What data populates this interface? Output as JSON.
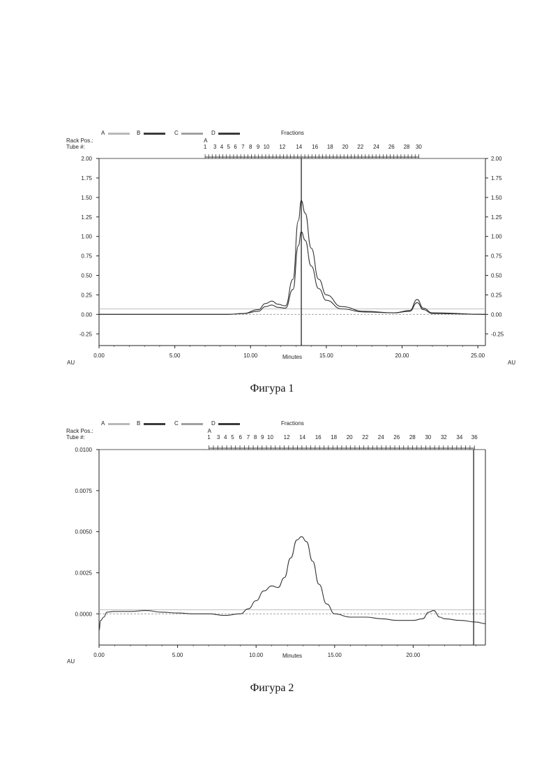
{
  "figures": [
    {
      "caption": "Фигура 1",
      "header": {
        "legend": [
          {
            "label": "A",
            "color": "#b8b8b8"
          },
          {
            "label": "B",
            "color": "#3a3a3a"
          },
          {
            "label": "C",
            "color": "#a0a0a0"
          },
          {
            "label": "D",
            "color": "#3a3a3a"
          }
        ],
        "fractions_label": "Fractions",
        "rack_label": "Rack Pos.:",
        "tube_label": "Tube #:",
        "rack_letter": "A"
      },
      "fraction_labels": [
        {
          "label": "1",
          "x": 7.0
        },
        {
          "label": "3",
          "x": 7.65
        },
        {
          "label": "4",
          "x": 8.1
        },
        {
          "label": "5",
          "x": 8.55
        },
        {
          "label": "6",
          "x": 9.0
        },
        {
          "label": "7",
          "x": 9.5
        },
        {
          "label": "8",
          "x": 10.0
        },
        {
          "label": "9",
          "x": 10.5
        },
        {
          "label": "10",
          "x": 11.05
        },
        {
          "label": "12",
          "x": 12.1
        },
        {
          "label": "14",
          "x": 13.2
        },
        {
          "label": "16",
          "x": 14.25
        },
        {
          "label": "18",
          "x": 15.25
        },
        {
          "label": "20",
          "x": 16.25
        },
        {
          "label": "22",
          "x": 17.25
        },
        {
          "label": "24",
          "x": 18.3
        },
        {
          "label": "26",
          "x": 19.3
        },
        {
          "label": "28",
          "x": 20.3
        },
        {
          "label": "30",
          "x": 21.1
        }
      ],
      "axis_unit_left": "AU",
      "axis_unit_right": "AU",
      "x_axis_label": "Minutes",
      "chart_data": {
        "type": "line",
        "xlabel": "Minutes",
        "ylabel": "AU",
        "xlim": [
          0,
          25.5
        ],
        "ylim": [
          -0.4,
          2.0
        ],
        "x_ticks": [
          "0.00",
          "5.00",
          "10.00",
          "15.00",
          "20.00",
          "25.00"
        ],
        "y_ticks": [
          "2.00",
          "1.75",
          "1.50",
          "1.25",
          "1.00",
          "0.75",
          "0.50",
          "0.25",
          "0.00",
          "-0.25"
        ],
        "marker_x": 13.35,
        "baselines": [
          0.07,
          0.0
        ],
        "series": [
          {
            "values": [
              [
                0,
                0.0
              ],
              [
                8.5,
                0.0
              ],
              [
                9.5,
                0.01
              ],
              [
                10.5,
                0.06
              ],
              [
                11.0,
                0.14
              ],
              [
                11.4,
                0.17
              ],
              [
                11.8,
                0.13
              ],
              [
                12.3,
                0.11
              ],
              [
                12.8,
                0.45
              ],
              [
                13.15,
                1.2
              ],
              [
                13.35,
                1.46
              ],
              [
                13.6,
                1.3
              ],
              [
                14.0,
                0.85
              ],
              [
                14.5,
                0.45
              ],
              [
                15.0,
                0.25
              ],
              [
                16.0,
                0.1
              ],
              [
                17.5,
                0.04
              ],
              [
                19.5,
                0.02
              ],
              [
                20.5,
                0.05
              ],
              [
                21.0,
                0.19
              ],
              [
                21.4,
                0.08
              ],
              [
                22.0,
                0.02
              ],
              [
                25.5,
                0.0
              ]
            ]
          },
          {
            "values": [
              [
                0,
                0.0
              ],
              [
                8.5,
                0.0
              ],
              [
                9.5,
                0.01
              ],
              [
                10.5,
                0.04
              ],
              [
                11.0,
                0.1
              ],
              [
                11.4,
                0.12
              ],
              [
                11.8,
                0.09
              ],
              [
                12.3,
                0.08
              ],
              [
                12.8,
                0.32
              ],
              [
                13.15,
                0.88
              ],
              [
                13.35,
                1.06
              ],
              [
                13.6,
                0.95
              ],
              [
                14.0,
                0.62
              ],
              [
                14.5,
                0.33
              ],
              [
                15.0,
                0.18
              ],
              [
                16.0,
                0.07
              ],
              [
                17.5,
                0.03
              ],
              [
                19.5,
                0.02
              ],
              [
                20.5,
                0.04
              ],
              [
                21.0,
                0.15
              ],
              [
                21.4,
                0.06
              ],
              [
                22.0,
                0.01
              ],
              [
                25.5,
                0.0
              ]
            ]
          }
        ]
      }
    },
    {
      "caption": "Фигура 2",
      "header": {
        "legend": [
          {
            "label": "A",
            "color": "#b8b8b8"
          },
          {
            "label": "B",
            "color": "#3a3a3a"
          },
          {
            "label": "C",
            "color": "#a0a0a0"
          },
          {
            "label": "D",
            "color": "#3a3a3a"
          }
        ],
        "fractions_label": "Fractions",
        "rack_label": "Rack Pos.:",
        "tube_label": "Tube #:",
        "rack_letter": "A"
      },
      "fraction_labels": [
        {
          "label": "1",
          "x": 7.0
        },
        {
          "label": "3",
          "x": 7.6
        },
        {
          "label": "4",
          "x": 8.05
        },
        {
          "label": "5",
          "x": 8.5
        },
        {
          "label": "6",
          "x": 9.0
        },
        {
          "label": "7",
          "x": 9.5
        },
        {
          "label": "8",
          "x": 9.95
        },
        {
          "label": "9",
          "x": 10.4
        },
        {
          "label": "10",
          "x": 10.9
        },
        {
          "label": "12",
          "x": 11.95
        },
        {
          "label": "14",
          "x": 12.95
        },
        {
          "label": "16",
          "x": 13.95
        },
        {
          "label": "18",
          "x": 14.95
        },
        {
          "label": "20",
          "x": 15.95
        },
        {
          "label": "22",
          "x": 16.95
        },
        {
          "label": "24",
          "x": 17.95
        },
        {
          "label": "26",
          "x": 18.95
        },
        {
          "label": "28",
          "x": 19.95
        },
        {
          "label": "30",
          "x": 20.95
        },
        {
          "label": "32",
          "x": 21.95
        },
        {
          "label": "34",
          "x": 22.95
        },
        {
          "label": "36",
          "x": 23.9
        }
      ],
      "axis_unit_left": "AU",
      "x_axis_label": "Minutes",
      "chart_data": {
        "type": "line",
        "xlabel": "Minutes",
        "ylabel": "AU",
        "xlim": [
          0,
          24.6
        ],
        "ylim": [
          -0.0019,
          0.01
        ],
        "x_ticks": [
          "0.00",
          "5.00",
          "10.00",
          "15.00",
          "20.00"
        ],
        "y_ticks": [
          "0.0100",
          "0.0075",
          "0.0050",
          "0.0025",
          "0.0000"
        ],
        "marker_x": 23.85,
        "baselines": [
          0.00025,
          0.0
        ],
        "series": [
          {
            "values": [
              [
                0,
                -0.001
              ],
              [
                0.1,
                -0.0004
              ],
              [
                0.3,
                -0.0002
              ],
              [
                0.5,
                0.0001
              ],
              [
                1.0,
                0.00015
              ],
              [
                2.0,
                0.00015
              ],
              [
                3.0,
                0.0002
              ],
              [
                4.0,
                0.0001
              ],
              [
                5.0,
                5e-05
              ],
              [
                6.0,
                0.0
              ],
              [
                7.0,
                0.0
              ],
              [
                8.0,
                -0.0001
              ],
              [
                9.0,
                0.0
              ],
              [
                9.5,
                0.0003
              ],
              [
                10.0,
                0.0008
              ],
              [
                10.5,
                0.0014
              ],
              [
                11.0,
                0.0017
              ],
              [
                11.4,
                0.0016
              ],
              [
                11.8,
                0.0022
              ],
              [
                12.2,
                0.0034
              ],
              [
                12.6,
                0.0045
              ],
              [
                12.9,
                0.0047
              ],
              [
                13.2,
                0.0044
              ],
              [
                13.6,
                0.0032
              ],
              [
                14.0,
                0.0018
              ],
              [
                14.5,
                0.0006
              ],
              [
                15.0,
                0.0
              ],
              [
                16.0,
                -0.0002
              ],
              [
                17.0,
                -0.0002
              ],
              [
                18.0,
                -0.0003
              ],
              [
                19.0,
                -0.0004
              ],
              [
                20.0,
                -0.0004
              ],
              [
                20.6,
                -0.0003
              ],
              [
                21.0,
                0.0001
              ],
              [
                21.3,
                0.0002
              ],
              [
                21.7,
                -0.0002
              ],
              [
                22.0,
                -0.0003
              ],
              [
                23.0,
                -0.0004
              ],
              [
                24.0,
                -0.0005
              ],
              [
                24.6,
                -0.0006
              ]
            ]
          }
        ]
      }
    }
  ]
}
